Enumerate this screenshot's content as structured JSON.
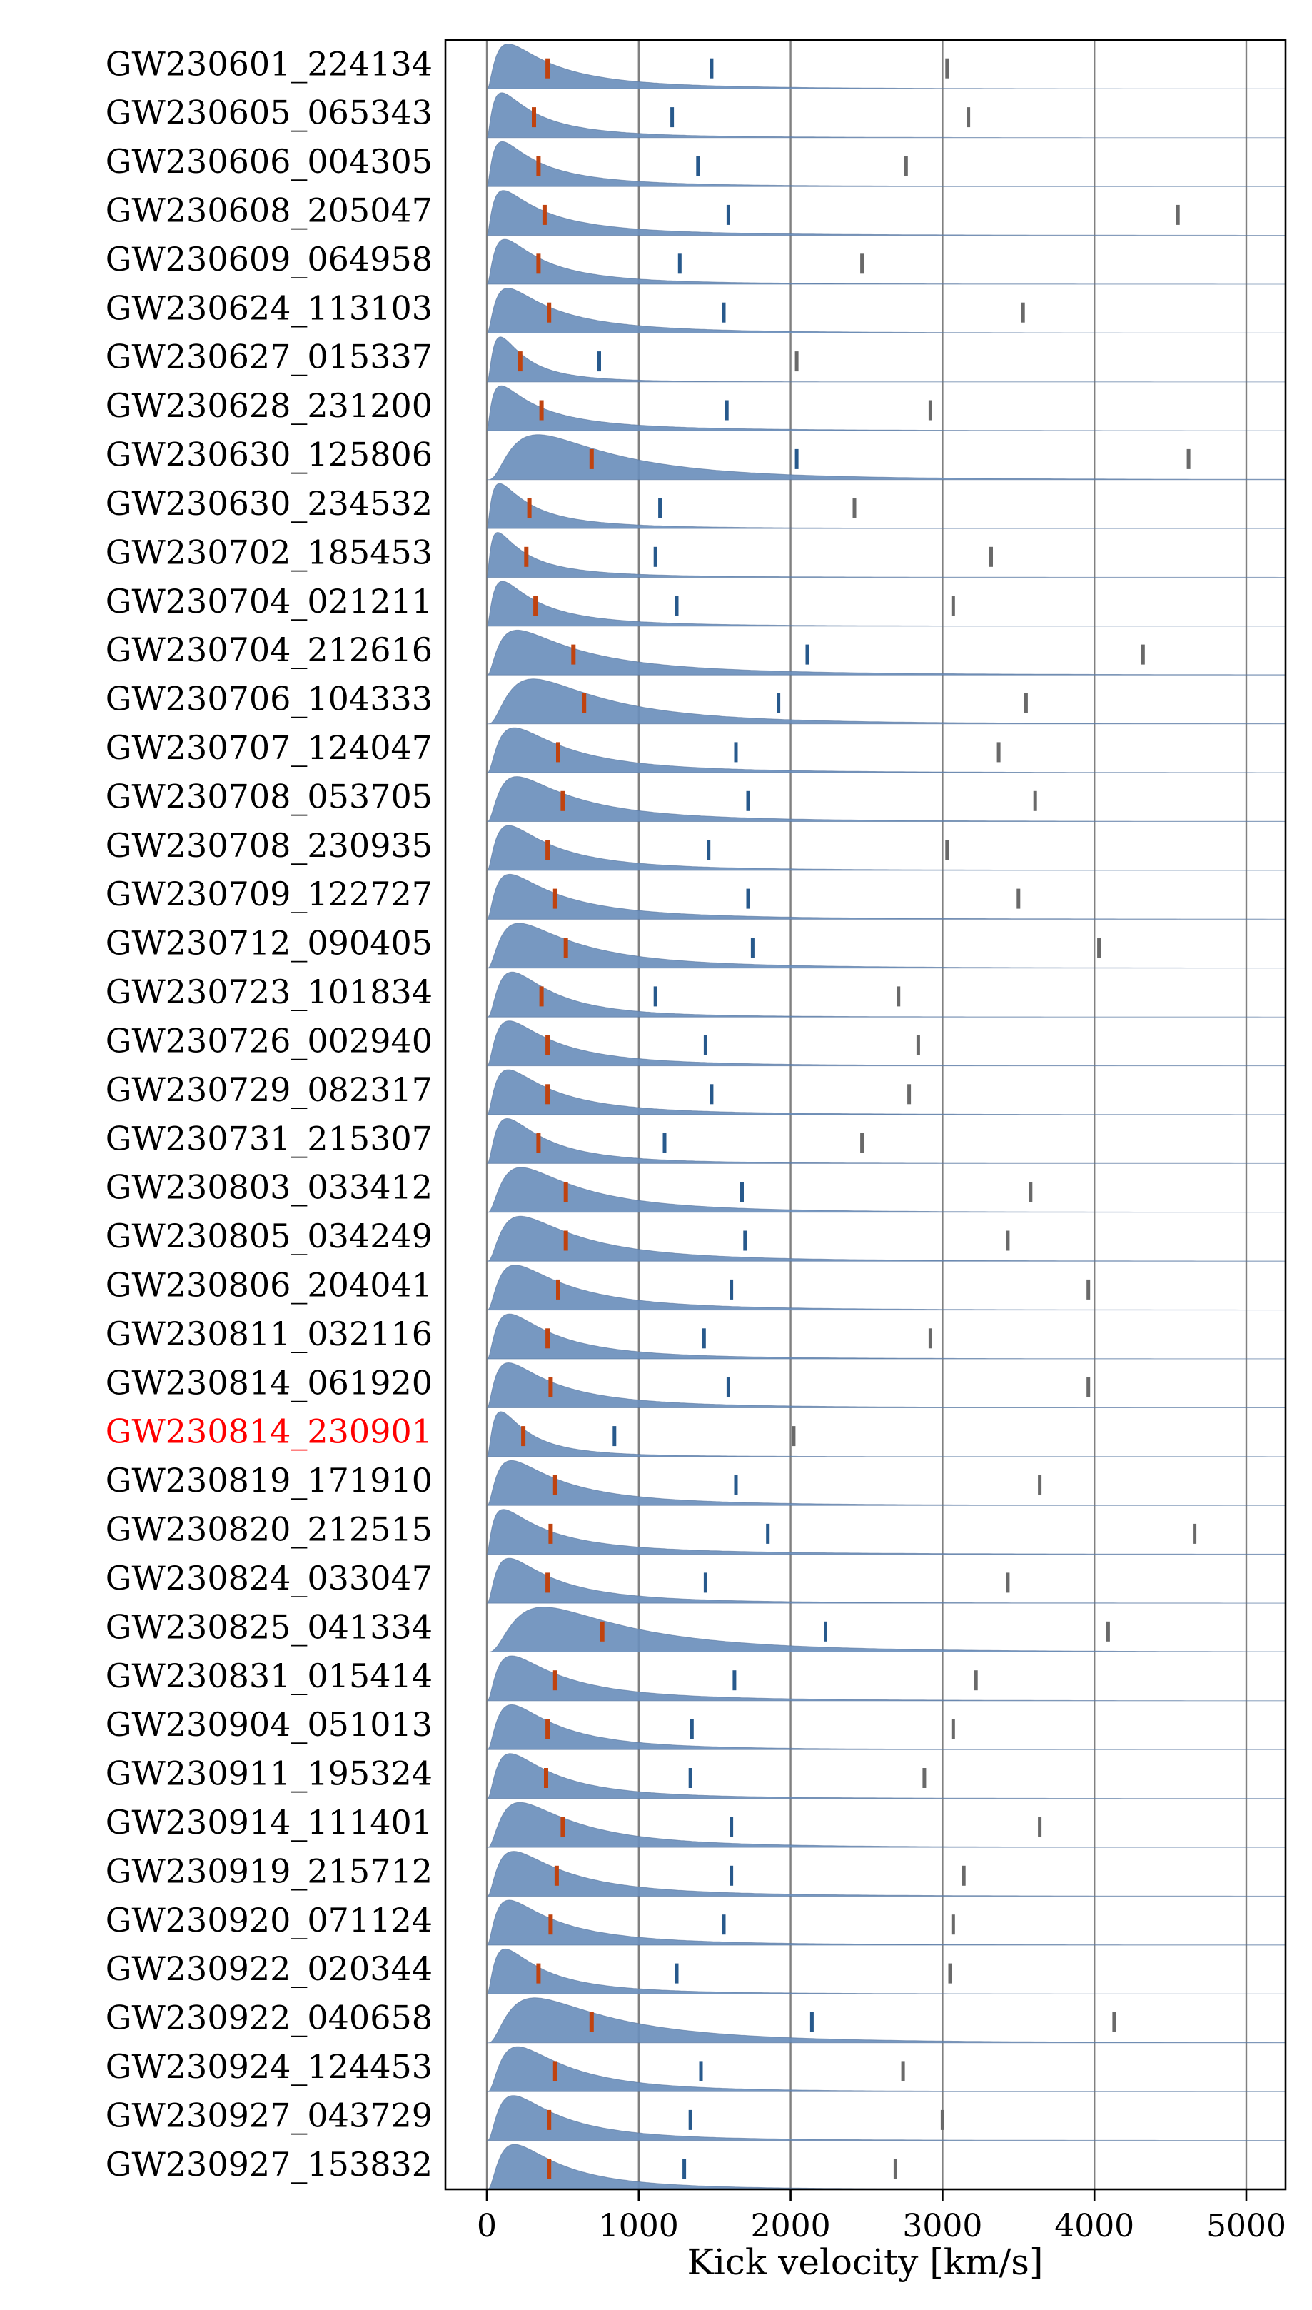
{
  "chart_data": {
    "type": "ridgeline",
    "title": "",
    "xlabel": "Kick velocity [km/s]",
    "ylabel": "",
    "xlim": [
      -275,
      5258
    ],
    "xticks": [
      0,
      1000,
      2000,
      3000,
      4000,
      5000
    ],
    "grid": "vertical",
    "legend": "none",
    "colors": {
      "density_fill": "#6b8fbc",
      "density_edge": "#57749f",
      "median_tick": "#c0430f",
      "p90_tick": "#27598c",
      "upper_tick": "#696969",
      "gridline": "#808080",
      "spine": "#000000",
      "label": "#000000",
      "highlight": "#ff0000"
    },
    "marker_meaning": {
      "red_tick": "median kick velocity (km/s)",
      "blue_tick": "90th percentile kick velocity (km/s)",
      "gray_tick": "upper bound kick velocity (km/s)"
    },
    "events": [
      {
        "name": "GW230601_224134",
        "median": 400,
        "p90": 1480,
        "upper": 3030,
        "highlight": false
      },
      {
        "name": "GW230605_065343",
        "median": 310,
        "p90": 1220,
        "upper": 3170,
        "highlight": false
      },
      {
        "name": "GW230606_004305",
        "median": 340,
        "p90": 1390,
        "upper": 2760,
        "highlight": false
      },
      {
        "name": "GW230608_205047",
        "median": 380,
        "p90": 1590,
        "upper": 4550,
        "highlight": false
      },
      {
        "name": "GW230609_064958",
        "median": 340,
        "p90": 1270,
        "upper": 2470,
        "highlight": false
      },
      {
        "name": "GW230624_113103",
        "median": 410,
        "p90": 1560,
        "upper": 3530,
        "highlight": false
      },
      {
        "name": "GW230627_015337",
        "median": 220,
        "p90": 740,
        "upper": 2040,
        "highlight": false
      },
      {
        "name": "GW230628_231200",
        "median": 360,
        "p90": 1580,
        "upper": 2920,
        "highlight": false
      },
      {
        "name": "GW230630_125806",
        "median": 690,
        "p90": 2040,
        "upper": 4620,
        "highlight": false
      },
      {
        "name": "GW230630_234532",
        "median": 280,
        "p90": 1140,
        "upper": 2420,
        "highlight": false
      },
      {
        "name": "GW230702_185453",
        "median": 260,
        "p90": 1110,
        "upper": 3320,
        "highlight": false
      },
      {
        "name": "GW230704_021211",
        "median": 320,
        "p90": 1250,
        "upper": 3070,
        "highlight": false
      },
      {
        "name": "GW230704_212616",
        "median": 570,
        "p90": 2110,
        "upper": 4320,
        "highlight": false
      },
      {
        "name": "GW230706_104333",
        "median": 640,
        "p90": 1920,
        "upper": 3550,
        "highlight": false
      },
      {
        "name": "GW230707_124047",
        "median": 470,
        "p90": 1640,
        "upper": 3370,
        "highlight": false
      },
      {
        "name": "GW230708_053705",
        "median": 500,
        "p90": 1720,
        "upper": 3610,
        "highlight": false
      },
      {
        "name": "GW230708_230935",
        "median": 400,
        "p90": 1460,
        "upper": 3030,
        "highlight": false
      },
      {
        "name": "GW230709_122727",
        "median": 450,
        "p90": 1720,
        "upper": 3500,
        "highlight": false
      },
      {
        "name": "GW230712_090405",
        "median": 520,
        "p90": 1750,
        "upper": 4030,
        "highlight": false
      },
      {
        "name": "GW230723_101834",
        "median": 360,
        "p90": 1110,
        "upper": 2710,
        "highlight": false
      },
      {
        "name": "GW230726_002940",
        "median": 400,
        "p90": 1440,
        "upper": 2840,
        "highlight": false
      },
      {
        "name": "GW230729_082317",
        "median": 400,
        "p90": 1480,
        "upper": 2780,
        "highlight": false
      },
      {
        "name": "GW230731_215307",
        "median": 340,
        "p90": 1170,
        "upper": 2470,
        "highlight": false
      },
      {
        "name": "GW230803_033412",
        "median": 520,
        "p90": 1680,
        "upper": 3580,
        "highlight": false
      },
      {
        "name": "GW230805_034249",
        "median": 520,
        "p90": 1700,
        "upper": 3430,
        "highlight": false
      },
      {
        "name": "GW230806_204041",
        "median": 470,
        "p90": 1610,
        "upper": 3960,
        "highlight": false
      },
      {
        "name": "GW230811_032116",
        "median": 400,
        "p90": 1430,
        "upper": 2920,
        "highlight": false
      },
      {
        "name": "GW230814_061920",
        "median": 420,
        "p90": 1590,
        "upper": 3960,
        "highlight": false
      },
      {
        "name": "GW230814_230901",
        "median": 240,
        "p90": 840,
        "upper": 2020,
        "highlight": true
      },
      {
        "name": "GW230819_171910",
        "median": 450,
        "p90": 1640,
        "upper": 3640,
        "highlight": false
      },
      {
        "name": "GW230820_212515",
        "median": 420,
        "p90": 1850,
        "upper": 4660,
        "highlight": false
      },
      {
        "name": "GW230824_033047",
        "median": 400,
        "p90": 1440,
        "upper": 3430,
        "highlight": false
      },
      {
        "name": "GW230825_041334",
        "median": 760,
        "p90": 2230,
        "upper": 4090,
        "highlight": false
      },
      {
        "name": "GW230831_015414",
        "median": 450,
        "p90": 1630,
        "upper": 3220,
        "highlight": false
      },
      {
        "name": "GW230904_051013",
        "median": 400,
        "p90": 1350,
        "upper": 3070,
        "highlight": false
      },
      {
        "name": "GW230911_195324",
        "median": 390,
        "p90": 1340,
        "upper": 2880,
        "highlight": false
      },
      {
        "name": "GW230914_111401",
        "median": 500,
        "p90": 1610,
        "upper": 3640,
        "highlight": false
      },
      {
        "name": "GW230919_215712",
        "median": 460,
        "p90": 1610,
        "upper": 3140,
        "highlight": false
      },
      {
        "name": "GW230920_071124",
        "median": 420,
        "p90": 1560,
        "upper": 3070,
        "highlight": false
      },
      {
        "name": "GW230922_020344",
        "median": 340,
        "p90": 1250,
        "upper": 3050,
        "highlight": false
      },
      {
        "name": "GW230922_040658",
        "median": 690,
        "p90": 2140,
        "upper": 4130,
        "highlight": false
      },
      {
        "name": "GW230924_124453",
        "median": 450,
        "p90": 1410,
        "upper": 2740,
        "highlight": false
      },
      {
        "name": "GW230927_043729",
        "median": 410,
        "p90": 1340,
        "upper": 3000,
        "highlight": false
      },
      {
        "name": "GW230927_153832",
        "median": 410,
        "p90": 1300,
        "upper": 2690,
        "highlight": false
      }
    ]
  }
}
